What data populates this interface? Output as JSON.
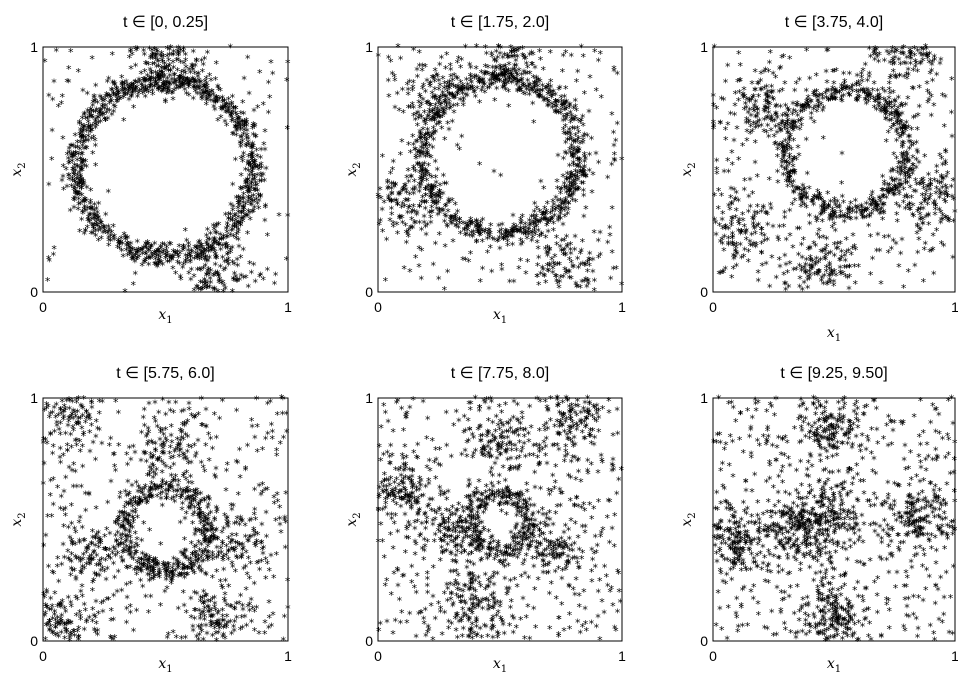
{
  "chart_data": [
    {
      "type": "scatter",
      "title": "t ∈ [0, 0.25]",
      "xlabel": "x",
      "xlabel_sub": "1",
      "ylabel": "x",
      "ylabel_sub": "2",
      "xlim": [
        0,
        1
      ],
      "ylim": [
        0,
        1
      ],
      "xticks": [
        "0",
        "1"
      ],
      "yticks": [
        "0",
        "1"
      ],
      "marker": "*",
      "color": "#000000",
      "pattern": {
        "ring_center": [
          0.5,
          0.5
        ],
        "ring_radius": 0.36,
        "ring_fraction": 0.7,
        "clusters": [
          [
            0.5,
            0.95
          ],
          [
            0.7,
            0.08
          ]
        ]
      }
    },
    {
      "type": "scatter",
      "title": "t ∈ [1.75, 2.0]",
      "xlabel": "x",
      "xlabel_sub": "1",
      "ylabel": "x",
      "ylabel_sub": "2",
      "xlim": [
        0,
        1
      ],
      "ylim": [
        0,
        1
      ],
      "xticks": [
        "0",
        "1"
      ],
      "yticks": [
        "0",
        "1"
      ],
      "marker": "*",
      "color": "#000000",
      "pattern": {
        "ring_center": [
          0.5,
          0.55
        ],
        "ring_radius": 0.32,
        "ring_fraction": 0.55,
        "clusters": [
          [
            0.2,
            0.8
          ],
          [
            0.55,
            0.95
          ],
          [
            0.1,
            0.35
          ],
          [
            0.75,
            0.1
          ]
        ]
      }
    },
    {
      "type": "scatter",
      "title": "t ∈ [3.75, 4.0]",
      "xlabel": "x",
      "xlabel_sub": "1",
      "ylabel": "x",
      "ylabel_sub": "2",
      "xlim": [
        0,
        1
      ],
      "ylim": [
        0,
        1
      ],
      "xticks": [
        "0",
        "1"
      ],
      "yticks": [
        "0",
        "1"
      ],
      "marker": "*",
      "color": "#000000",
      "pattern": {
        "ring_center": [
          0.55,
          0.57
        ],
        "ring_radius": 0.25,
        "ring_fraction": 0.4,
        "clusters": [
          [
            0.45,
            0.1
          ],
          [
            0.2,
            0.75
          ],
          [
            0.8,
            0.95
          ],
          [
            0.9,
            0.4
          ],
          [
            0.12,
            0.25
          ]
        ]
      }
    },
    {
      "type": "scatter",
      "title": "t ∈ [5.75, 6.0]",
      "xlabel": "x",
      "xlabel_sub": "1",
      "ylabel": "x",
      "ylabel_sub": "2",
      "xlim": [
        0,
        1
      ],
      "ylim": [
        0,
        1
      ],
      "xticks": [
        "0",
        "1"
      ],
      "yticks": [
        "0",
        "1"
      ],
      "marker": "*",
      "color": "#000000",
      "pattern": {
        "ring_center": [
          0.5,
          0.45
        ],
        "ring_radius": 0.17,
        "ring_fraction": 0.3,
        "clusters": [
          [
            0.8,
            0.42
          ],
          [
            0.2,
            0.35
          ],
          [
            0.5,
            0.78
          ],
          [
            0.1,
            0.92
          ],
          [
            0.7,
            0.1
          ],
          [
            0.1,
            0.05
          ]
        ]
      }
    },
    {
      "type": "scatter",
      "title": "t ∈ [7.75, 8.0]",
      "xlabel": "x",
      "xlabel_sub": "1",
      "ylabel": "x",
      "ylabel_sub": "2",
      "xlim": [
        0,
        1
      ],
      "ylim": [
        0,
        1
      ],
      "xticks": [
        "0",
        "1"
      ],
      "yticks": [
        "0",
        "1"
      ],
      "marker": "*",
      "color": "#000000",
      "pattern": {
        "ring_center": [
          0.5,
          0.48
        ],
        "ring_radius": 0.12,
        "ring_fraction": 0.2,
        "clusters": [
          [
            0.5,
            0.82
          ],
          [
            0.3,
            0.45
          ],
          [
            0.72,
            0.38
          ],
          [
            0.4,
            0.15
          ],
          [
            0.8,
            0.9
          ],
          [
            0.1,
            0.6
          ]
        ]
      }
    },
    {
      "type": "scatter",
      "title": "t ∈ [9.25, 9.50]",
      "xlabel": "x",
      "xlabel_sub": "1",
      "ylabel": "x",
      "ylabel_sub": "2",
      "xlim": [
        0,
        1
      ],
      "ylim": [
        0,
        1
      ],
      "xticks": [
        "0",
        "1"
      ],
      "yticks": [
        "0",
        "1"
      ],
      "marker": "*",
      "color": "#000000",
      "pattern": {
        "ring_center": [
          0.5,
          0.5
        ],
        "ring_radius": 0.0,
        "ring_fraction": 0.0,
        "clusters": [
          [
            0.48,
            0.85
          ],
          [
            0.48,
            0.5
          ],
          [
            0.1,
            0.4
          ],
          [
            0.35,
            0.45
          ],
          [
            0.5,
            0.1
          ],
          [
            0.85,
            0.5
          ]
        ]
      }
    }
  ]
}
